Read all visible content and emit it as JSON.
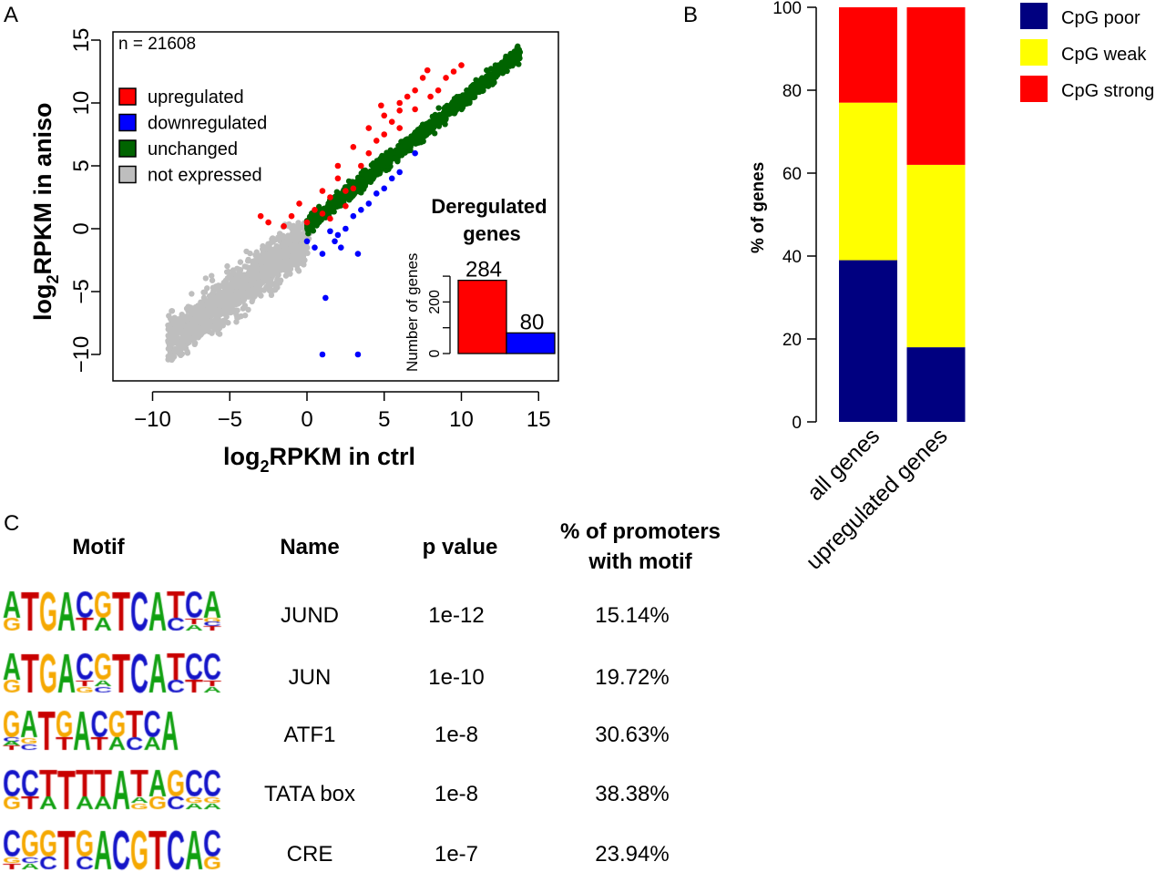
{
  "colors": {
    "upregulated": "#ff0000",
    "downregulated": "#0000ff",
    "unchanged": "#006400",
    "not_expressed": "#bebebe",
    "cpg_poor": "#000080",
    "cpg_weak": "#ffff00",
    "cpg_strong": "#ff0000",
    "base_A": "#10a010",
    "base_C": "#1414c8",
    "base_G": "#f5a800",
    "base_T": "#c80000"
  },
  "chart_data": [
    {
      "panel": "A",
      "type": "scatter",
      "xlabel": "log2RPKM in ctrl",
      "ylabel": "log2RPKM in aniso",
      "xlim": [
        -11.5,
        17
      ],
      "ylim": [
        -12,
        15.5
      ],
      "xticks": [
        -10,
        -5,
        0,
        5,
        10,
        15
      ],
      "yticks": [
        -10,
        -5,
        0,
        5,
        10,
        15
      ],
      "xtick_labels": [
        "−10",
        "−5",
        "0",
        "5",
        "10",
        "15"
      ],
      "ytick_labels": [
        "−10",
        "−5",
        "0",
        "5",
        "10",
        "15"
      ],
      "annotation": "n = 21608",
      "legend_placement": "top-left",
      "legend": [
        "upregulated",
        "downregulated",
        "unchanged",
        "not expressed"
      ],
      "series": [
        {
          "name": "upregulated",
          "points": [
            [
              -3,
              1
            ],
            [
              -2.5,
              0.5
            ],
            [
              -1.5,
              0.2
            ],
            [
              -1,
              1
            ],
            [
              -0.5,
              2
            ],
            [
              0,
              0.5
            ],
            [
              0.5,
              1.5
            ],
            [
              1,
              3
            ],
            [
              1.5,
              2.5
            ],
            [
              2,
              4
            ],
            [
              2.5,
              3
            ],
            [
              2,
              5
            ],
            [
              3,
              6.5
            ],
            [
              3.5,
              5
            ],
            [
              4,
              8
            ],
            [
              4,
              6
            ],
            [
              4.5,
              7
            ],
            [
              5,
              9
            ],
            [
              5,
              7.5
            ],
            [
              5.5,
              8.5
            ],
            [
              6,
              10
            ],
            [
              6,
              8
            ],
            [
              6.5,
              10.5
            ],
            [
              7,
              11
            ],
            [
              7,
              9.5
            ],
            [
              7.5,
              12
            ],
            [
              8,
              10.5
            ],
            [
              8.5,
              11
            ],
            [
              9,
              12
            ],
            [
              9.5,
              12.5
            ],
            [
              10,
              13
            ],
            [
              1,
              1.2
            ],
            [
              2.5,
              1.8
            ],
            [
              3,
              3.2
            ],
            [
              1.5,
              0.8
            ],
            [
              6,
              9.4
            ],
            [
              4.8,
              9.8
            ],
            [
              7.8,
              12.6
            ]
          ]
        },
        {
          "name": "downregulated",
          "points": [
            [
              0,
              -1
            ],
            [
              0.5,
              -1.5
            ],
            [
              1,
              -2
            ],
            [
              1,
              -10
            ],
            [
              1.2,
              -5.5
            ],
            [
              1.8,
              -1
            ],
            [
              2,
              -0.5
            ],
            [
              2.5,
              0
            ],
            [
              3,
              1
            ],
            [
              3.5,
              1.5
            ],
            [
              3.3,
              -2
            ],
            [
              3.3,
              -10
            ],
            [
              4,
              2
            ],
            [
              4.5,
              2.8
            ],
            [
              5,
              3.2
            ],
            [
              5.5,
              4
            ],
            [
              6,
              4.5
            ],
            [
              7,
              6
            ],
            [
              2.2,
              -1.5
            ],
            [
              1.5,
              -0.2
            ]
          ]
        },
        {
          "name": "unchanged"
        },
        {
          "name": "not expressed"
        }
      ]
    },
    {
      "panel": "A-inset",
      "type": "bar",
      "title": "Deregulated genes",
      "ylabel": "Number of genes",
      "yticks": [
        0,
        100,
        200,
        300
      ],
      "ytick_labels": [
        "0",
        "",
        "200",
        ""
      ],
      "categories": [
        "upregulated",
        "downregulated"
      ],
      "values": [
        284,
        80
      ],
      "value_labels": [
        "284",
        "80"
      ]
    },
    {
      "panel": "B",
      "type": "bar",
      "stacked": true,
      "ylabel": "% of genes",
      "ylim": [
        0,
        100
      ],
      "yticks": [
        0,
        20,
        40,
        60,
        80,
        100
      ],
      "categories": [
        "all genes",
        "upregulated genes"
      ],
      "legend_placement": "top-right",
      "series": [
        {
          "name": "CpG poor",
          "values": [
            39,
            18
          ]
        },
        {
          "name": "CpG weak",
          "values": [
            38,
            44
          ]
        },
        {
          "name": "CpG strong",
          "values": [
            23,
            38
          ]
        }
      ]
    },
    {
      "panel": "C",
      "type": "table",
      "headers": [
        "Motif",
        "Name",
        "p value",
        "% of promoters",
        "with motif"
      ],
      "rows": [
        {
          "name": "JUND",
          "p": "1e-12",
          "pct": "15.14%",
          "logo": [
            [
              "A",
              "G"
            ],
            [
              "T"
            ],
            [
              "G"
            ],
            [
              "A"
            ],
            [
              "C",
              "T"
            ],
            [
              "G",
              "A"
            ],
            [
              "T"
            ],
            [
              "C"
            ],
            [
              "A"
            ],
            [
              "T",
              "C"
            ],
            [
              "C",
              "T",
              "A"
            ],
            [
              "A",
              "G",
              "C",
              "T"
            ]
          ]
        },
        {
          "name": "JUN",
          "p": "1e-10",
          "pct": "19.72%",
          "logo": [
            [
              "A",
              "G"
            ],
            [
              "T"
            ],
            [
              "G"
            ],
            [
              "A"
            ],
            [
              "C",
              "T",
              "G"
            ],
            [
              "G",
              "A",
              "C"
            ],
            [
              "T"
            ],
            [
              "C"
            ],
            [
              "A"
            ],
            [
              "T",
              "C"
            ],
            [
              "C",
              "T"
            ],
            [
              "C",
              "T",
              "A"
            ]
          ]
        },
        {
          "name": "ATF1",
          "p": "1e-8",
          "pct": "30.63%",
          "logo": [
            [
              "G",
              "C",
              "A",
              "T"
            ],
            [
              "A",
              "G",
              "C"
            ],
            [
              "T"
            ],
            [
              "G",
              "T"
            ],
            [
              "A"
            ],
            [
              "C",
              "T"
            ],
            [
              "G",
              "A"
            ],
            [
              "T",
              "C"
            ],
            [
              "C",
              "A"
            ],
            [
              "A"
            ]
          ]
        },
        {
          "name": "TATA box",
          "p": "1e-8",
          "pct": "38.38%",
          "logo": [
            [
              "C",
              "G"
            ],
            [
              "C",
              "T"
            ],
            [
              "T",
              "A"
            ],
            [
              "T"
            ],
            [
              "T",
              "A"
            ],
            [
              "T",
              "A"
            ],
            [
              "A"
            ],
            [
              "T",
              "A",
              "G"
            ],
            [
              "A",
              "G"
            ],
            [
              "G",
              "C"
            ],
            [
              "C",
              "G",
              "A"
            ],
            [
              "C",
              "G",
              "A"
            ]
          ]
        },
        {
          "name": "CRE",
          "p": "1e-7",
          "pct": "23.94%",
          "logo": [
            [
              "C",
              "G",
              "T"
            ],
            [
              "G",
              "C",
              "A"
            ],
            [
              "G",
              "C"
            ],
            [
              "T"
            ],
            [
              "G",
              "C"
            ],
            [
              "A"
            ],
            [
              "C"
            ],
            [
              "G"
            ],
            [
              "T"
            ],
            [
              "C"
            ],
            [
              "A"
            ],
            [
              "C",
              "G"
            ]
          ]
        }
      ]
    }
  ],
  "panel_labels": [
    "A",
    "B",
    "C"
  ]
}
